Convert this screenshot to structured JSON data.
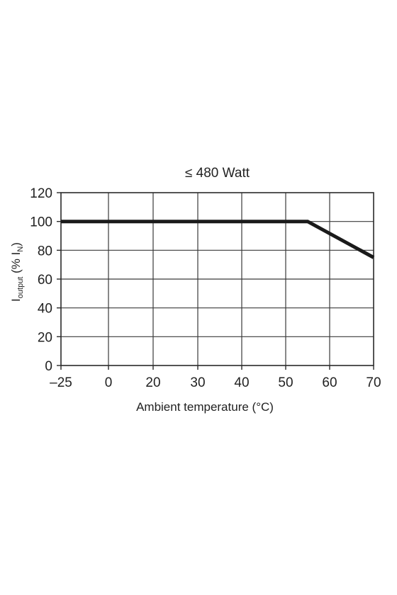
{
  "chart_data": {
    "type": "line",
    "title": "≤ 480 Watt",
    "xlabel": "Ambient temperature (°C)",
    "ylabel": {
      "main": "I",
      "sub": "output",
      "middle": " (% I",
      "sub2": "N",
      "end": ")"
    },
    "xlim": [
      -25,
      70
    ],
    "ylim": [
      0,
      120
    ],
    "x_ticks": [
      -25,
      0,
      20,
      30,
      40,
      50,
      60,
      70
    ],
    "x_tick_labels": [
      "–25",
      "0",
      "20",
      "30",
      "40",
      "50",
      "60",
      "70"
    ],
    "y_ticks": [
      0,
      20,
      40,
      60,
      80,
      100,
      120
    ],
    "y_tick_labels": [
      "0",
      "20",
      "40",
      "60",
      "80",
      "100",
      "120"
    ],
    "grid": true,
    "series": [
      {
        "x": [
          -25,
          55,
          70
        ],
        "y": [
          100,
          100,
          75
        ],
        "color": "#1a1a1a"
      }
    ]
  }
}
